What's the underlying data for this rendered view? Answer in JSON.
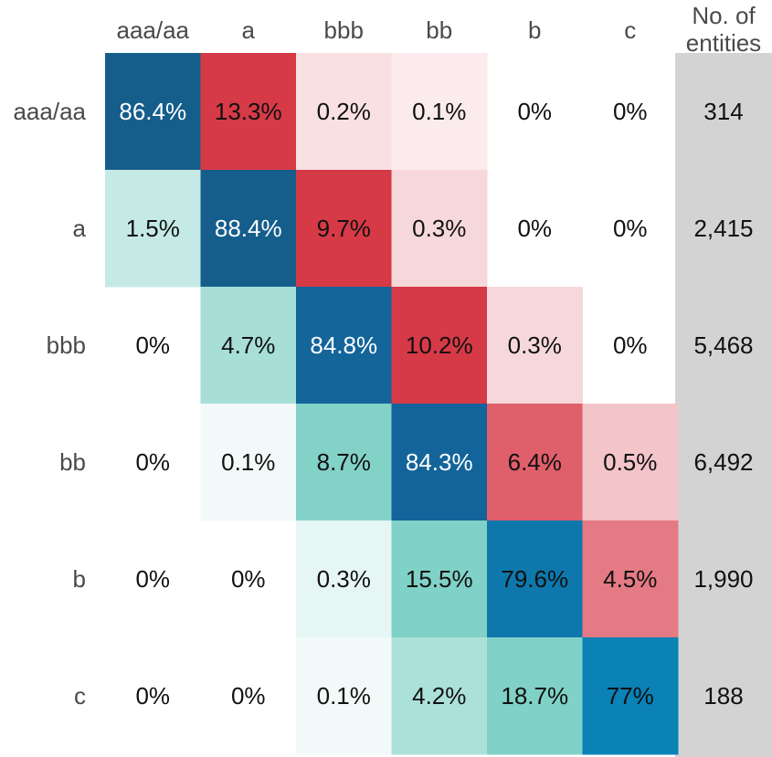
{
  "chart_data": {
    "type": "heatmap",
    "title": "",
    "xlabel": "",
    "ylabel": "",
    "columns": [
      "aaa/aa",
      "a",
      "bbb",
      "bb",
      "b",
      "c"
    ],
    "rows": [
      "aaa/aa",
      "a",
      "bbb",
      "bb",
      "b",
      "c"
    ],
    "count_header": [
      "No. of",
      "entities"
    ],
    "values": [
      [
        86.4,
        13.3,
        0.2,
        0.1,
        0,
        0
      ],
      [
        1.5,
        88.4,
        9.7,
        0.3,
        0,
        0
      ],
      [
        0,
        4.7,
        84.8,
        10.2,
        0.3,
        0
      ],
      [
        0,
        0.1,
        8.7,
        84.3,
        6.4,
        0.5
      ],
      [
        0,
        0,
        0.3,
        15.5,
        79.6,
        4.5
      ],
      [
        0,
        0,
        0.1,
        4.2,
        18.7,
        77
      ]
    ],
    "labels": [
      [
        "86.4%",
        "13.3%",
        "0.2%",
        "0.1%",
        "0%",
        "0%"
      ],
      [
        "1.5%",
        "88.4%",
        "9.7%",
        "0.3%",
        "0%",
        "0%"
      ],
      [
        "0%",
        "4.7%",
        "84.8%",
        "10.2%",
        "0.3%",
        "0%"
      ],
      [
        "0%",
        "0.1%",
        "8.7%",
        "84.3%",
        "6.4%",
        "0.5%"
      ],
      [
        "0%",
        "0%",
        "0.3%",
        "15.5%",
        "79.6%",
        "4.5%"
      ],
      [
        "0%",
        "0%",
        "0.1%",
        "4.2%",
        "18.7%",
        "77%"
      ]
    ],
    "counts": [
      "314",
      "2,415",
      "5,468",
      "6,492",
      "1,990",
      "188"
    ],
    "colors": {
      "diagonal": [
        "#155d8b",
        "#155d8b",
        "#13659a",
        "#13649a",
        "#0e78ad",
        "#0a82b6"
      ],
      "upgrade": "#d73a47",
      "downgrade": "#80d1c7",
      "count_column": "#d3d3d3",
      "text_dark": "#111111",
      "text_light": "#ffffff"
    }
  }
}
